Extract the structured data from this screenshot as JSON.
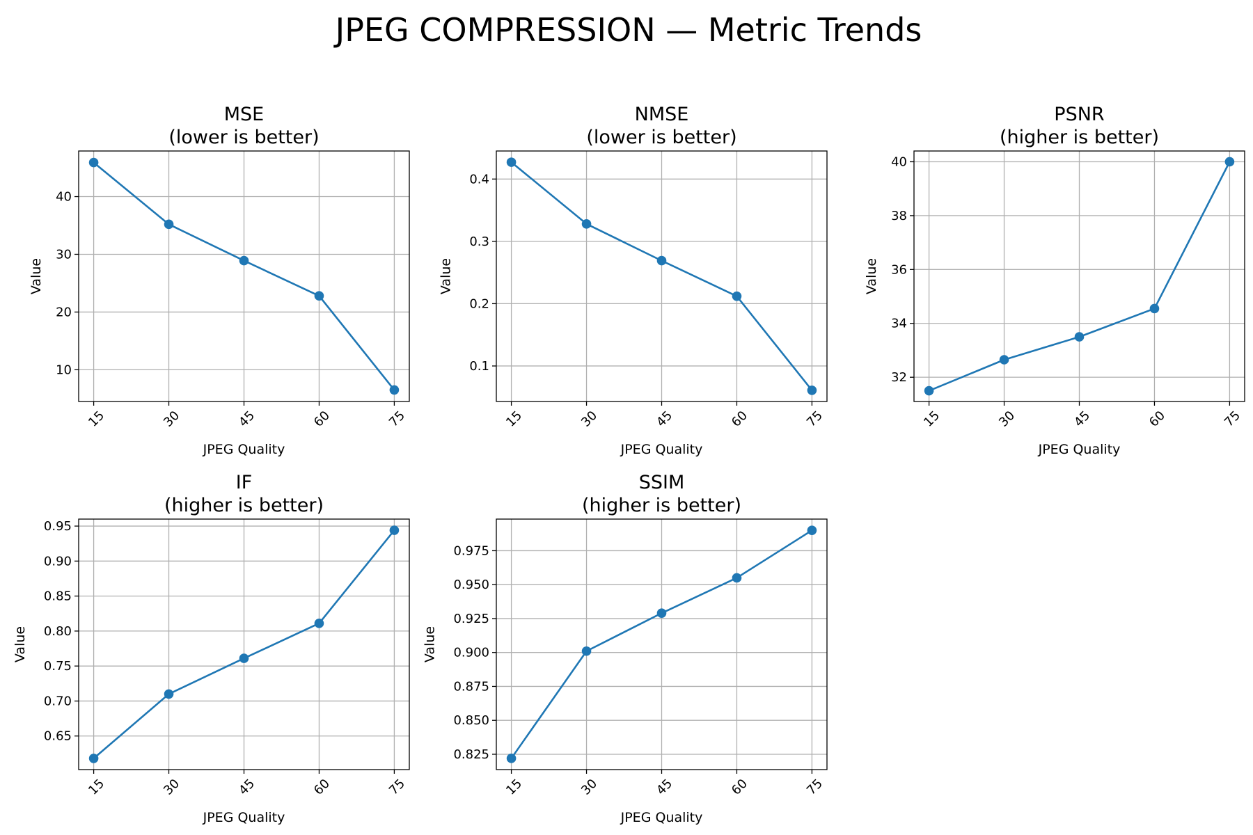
{
  "figure": {
    "title": "JPEG COMPRESSION — Metric Trends",
    "line_color": "#1f77b4",
    "grid": true
  },
  "chart_data": [
    {
      "type": "line",
      "title": "MSE\n(lower is better)",
      "xlabel": "JPEG Quality",
      "ylabel": "Value",
      "x": [
        15,
        30,
        45,
        60,
        75
      ],
      "x_ticks": [
        "15",
        "30",
        "45",
        "60",
        "75"
      ],
      "y": [
        45.9,
        35.2,
        28.9,
        22.8,
        6.5
      ],
      "y_ticks": [
        10,
        20,
        30,
        40
      ],
      "y_tick_labels": [
        "10",
        "20",
        "30",
        "40"
      ],
      "ylim": [
        4.5,
        47.9
      ]
    },
    {
      "type": "line",
      "title": "NMSE\n(lower is better)",
      "xlabel": "JPEG Quality",
      "ylabel": "Value",
      "x": [
        15,
        30,
        45,
        60,
        75
      ],
      "x_ticks": [
        "15",
        "30",
        "45",
        "60",
        "75"
      ],
      "y": [
        0.427,
        0.328,
        0.269,
        0.212,
        0.061
      ],
      "y_ticks": [
        0.1,
        0.2,
        0.3,
        0.4
      ],
      "y_tick_labels": [
        "0.1",
        "0.2",
        "0.3",
        "0.4"
      ],
      "ylim": [
        0.043,
        0.445
      ]
    },
    {
      "type": "line",
      "title": "PSNR\n(higher is better)",
      "xlabel": "JPEG Quality",
      "ylabel": "Value",
      "x": [
        15,
        30,
        45,
        60,
        75
      ],
      "x_ticks": [
        "15",
        "30",
        "45",
        "60",
        "75"
      ],
      "y": [
        31.5,
        32.65,
        33.5,
        34.55,
        40.0
      ],
      "y_ticks": [
        32,
        34,
        36,
        38,
        40
      ],
      "y_tick_labels": [
        "32",
        "34",
        "36",
        "38",
        "40"
      ],
      "ylim": [
        31.1,
        40.4
      ]
    },
    {
      "type": "line",
      "title": "IF\n(higher is better)",
      "xlabel": "JPEG Quality",
      "ylabel": "Value",
      "x": [
        15,
        30,
        45,
        60,
        75
      ],
      "x_ticks": [
        "15",
        "30",
        "45",
        "60",
        "75"
      ],
      "y": [
        0.618,
        0.71,
        0.761,
        0.811,
        0.944
      ],
      "y_ticks": [
        0.65,
        0.7,
        0.75,
        0.8,
        0.85,
        0.9,
        0.95
      ],
      "y_tick_labels": [
        "0.65",
        "0.70",
        "0.75",
        "0.80",
        "0.85",
        "0.90",
        "0.95"
      ],
      "ylim": [
        0.602,
        0.96
      ]
    },
    {
      "type": "line",
      "title": "SSIM\n(higher is better)",
      "xlabel": "JPEG Quality",
      "ylabel": "Value",
      "x": [
        15,
        30,
        45,
        60,
        75
      ],
      "x_ticks": [
        "15",
        "30",
        "45",
        "60",
        "75"
      ],
      "y": [
        0.822,
        0.901,
        0.929,
        0.955,
        0.99
      ],
      "y_ticks": [
        0.825,
        0.85,
        0.875,
        0.9,
        0.925,
        0.95,
        0.975
      ],
      "y_tick_labels": [
        "0.825",
        "0.850",
        "0.875",
        "0.900",
        "0.925",
        "0.950",
        "0.975"
      ],
      "ylim": [
        0.8137,
        0.9983
      ]
    }
  ]
}
